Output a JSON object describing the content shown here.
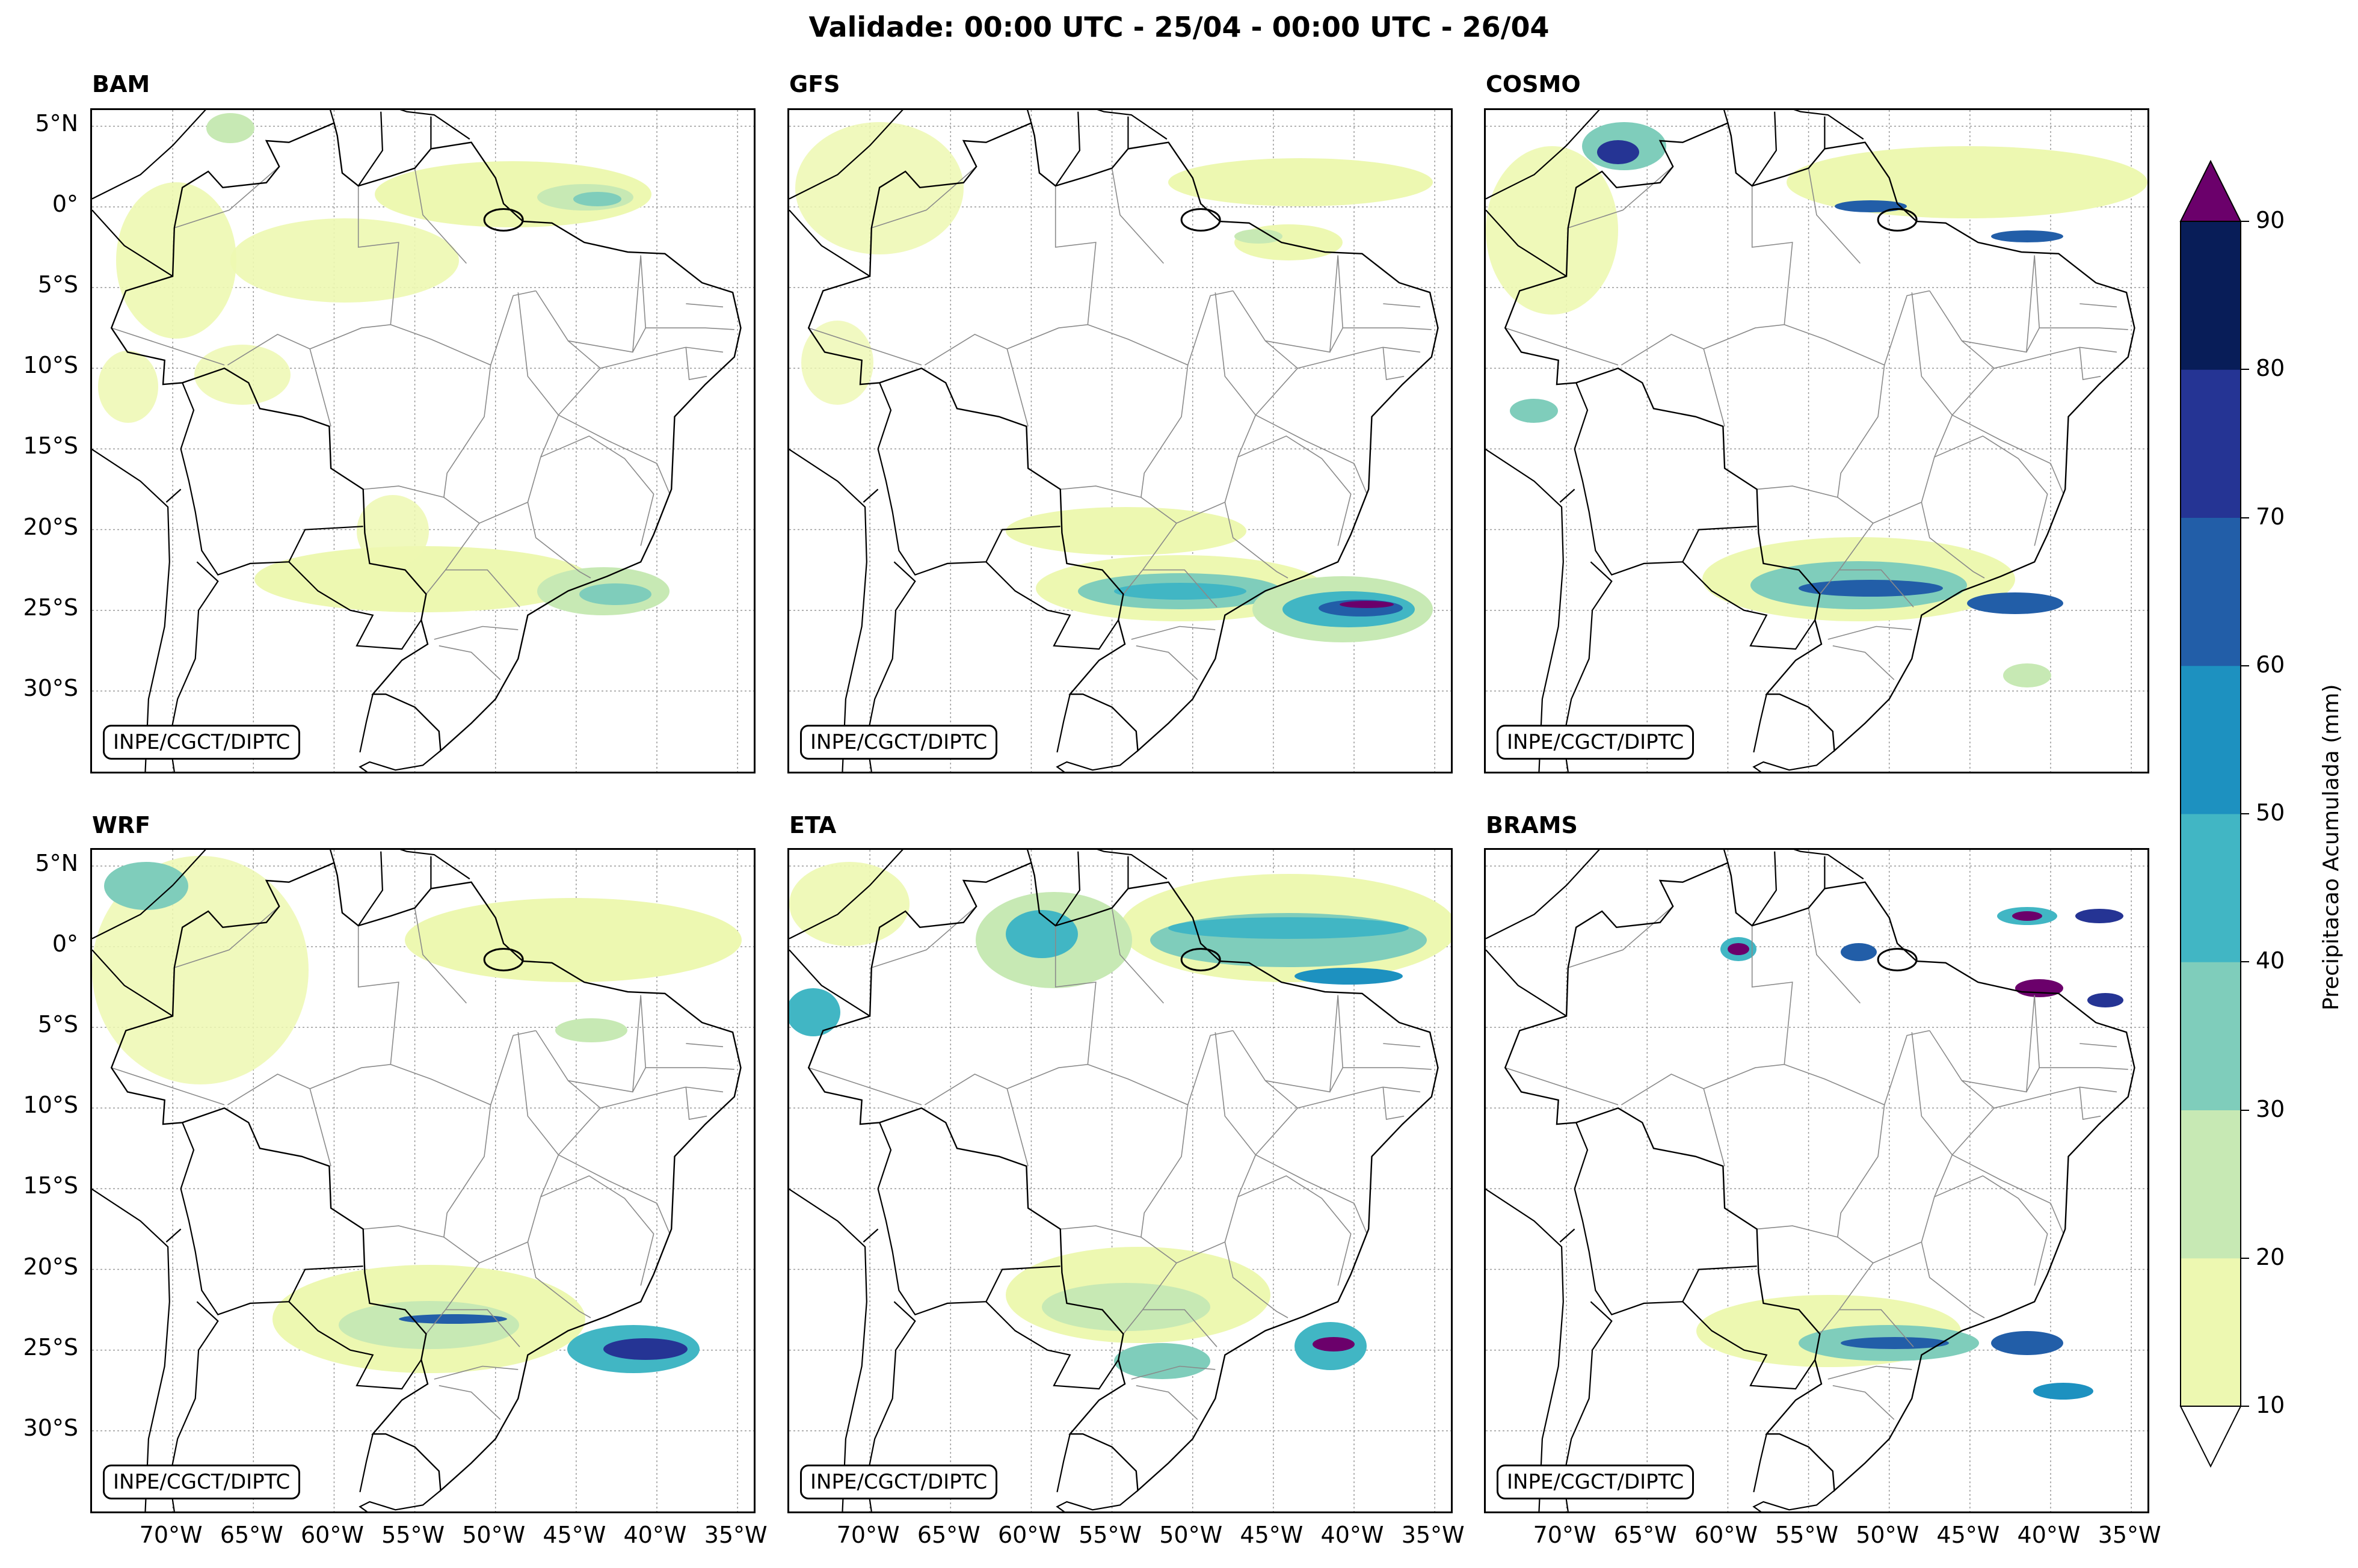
{
  "figure": {
    "title": "Validade: 00:00 UTC - 25/04 - 00:00 UTC - 26/04",
    "credit": "INPE/CGCT/DIPTC",
    "lat_ticks": [
      "5°N",
      "0°",
      "5°S",
      "10°S",
      "15°S",
      "20°S",
      "25°S",
      "30°S"
    ],
    "lon_ticks": [
      "70°W",
      "65°W",
      "60°W",
      "55°W",
      "50°W",
      "45°W",
      "40°W",
      "35°W"
    ],
    "lat_range": [
      6,
      -35
    ],
    "lon_range": [
      -75,
      -34
    ]
  },
  "panels": [
    {
      "name": "BAM"
    },
    {
      "name": "GFS"
    },
    {
      "name": "COSMO"
    },
    {
      "name": "WRF"
    },
    {
      "name": "ETA"
    },
    {
      "name": "BRAMS"
    }
  ],
  "colorbar": {
    "label": "Precipitacao Acumulada (mm)",
    "ticks": [
      "10",
      "20",
      "30",
      "40",
      "50",
      "60",
      "70",
      "80",
      "90"
    ],
    "colors": [
      "#edf8b1",
      "#c7e9b4",
      "#7fcdbb",
      "#41b6c4",
      "#1d91c0",
      "#225ea8",
      "#253494",
      "#081d58"
    ],
    "over_color": "#6b006b",
    "under_color": "#ffffff"
  }
}
